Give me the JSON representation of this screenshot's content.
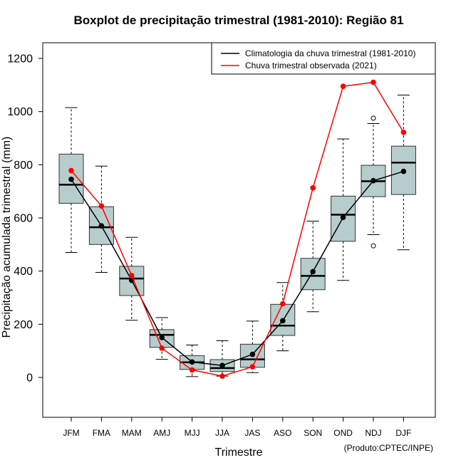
{
  "chart_data": {
    "type": "box",
    "title": "Boxplot de precipitação trimestral (1981-2010): Região 81",
    "xlabel": "Trimestre",
    "ylabel": "Precipitação acumulada trimestral (mm)",
    "ylim": [
      -150,
      1265
    ],
    "yticks": [
      0,
      200,
      400,
      600,
      800,
      1000,
      1200
    ],
    "categories": [
      "JFM",
      "FMA",
      "MAM",
      "AMJ",
      "MJJ",
      "JJA",
      "JAS",
      "ASO",
      "SON",
      "OND",
      "NDJ",
      "DJF"
    ],
    "boxes": [
      {
        "min": 470,
        "q1": 655,
        "median": 725,
        "q3": 840,
        "max": 1015,
        "outliers": []
      },
      {
        "min": 395,
        "q1": 500,
        "median": 565,
        "q3": 642,
        "max": 795,
        "outliers": []
      },
      {
        "min": 215,
        "q1": 308,
        "median": 372,
        "q3": 418,
        "max": 527,
        "outliers": []
      },
      {
        "min": 68,
        "q1": 113,
        "median": 160,
        "q3": 180,
        "max": 225,
        "outliers": []
      },
      {
        "min": 3,
        "q1": 30,
        "median": 57,
        "q3": 82,
        "max": 122,
        "outliers": []
      },
      {
        "min": 5,
        "q1": 22,
        "median": 35,
        "q3": 67,
        "max": 138,
        "outliers": []
      },
      {
        "min": 18,
        "q1": 38,
        "median": 68,
        "q3": 125,
        "max": 212,
        "outliers": []
      },
      {
        "min": 100,
        "q1": 158,
        "median": 195,
        "q3": 275,
        "max": 357,
        "outliers": []
      },
      {
        "min": 247,
        "q1": 330,
        "median": 382,
        "q3": 448,
        "max": 588,
        "outliers": []
      },
      {
        "min": 365,
        "q1": 512,
        "median": 612,
        "q3": 682,
        "max": 897,
        "outliers": []
      },
      {
        "min": 537,
        "q1": 680,
        "median": 738,
        "q3": 798,
        "max": 955,
        "outliers": [
          495,
          975
        ]
      },
      {
        "min": 480,
        "q1": 688,
        "median": 808,
        "q3": 870,
        "max": 1062,
        "outliers": []
      }
    ],
    "series": [
      {
        "name": "Climatologia da chuva trimestral (1981-2010)",
        "color": "#000000",
        "values": [
          745,
          570,
          365,
          150,
          58,
          45,
          87,
          213,
          398,
          602,
          740,
          775
        ]
      },
      {
        "name": "Chuva trimestral observada (2021)",
        "color": "#ff0000",
        "values": [
          778,
          645,
          383,
          110,
          28,
          5,
          40,
          277,
          713,
          1095,
          1110,
          922
        ]
      }
    ],
    "box_color": "#b7cccc",
    "legend_position": "top-right"
  },
  "credit": "(Produto:CPTEC/INPE)"
}
